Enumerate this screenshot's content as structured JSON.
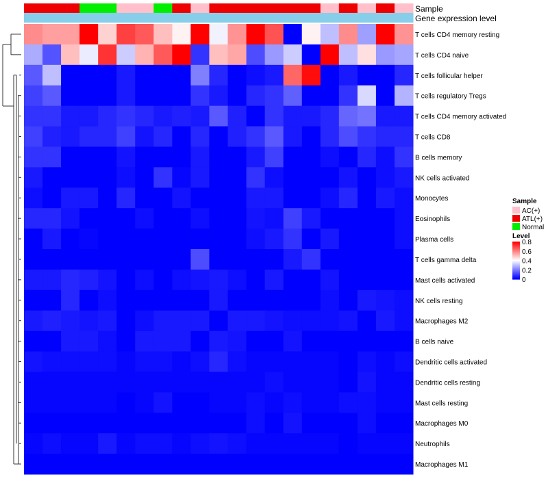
{
  "chart_data": {
    "type": "heatmap",
    "title": "",
    "annotation_labels": {
      "sample": "Sample",
      "gene_expression": "Gene expression level"
    },
    "legend": {
      "sample_title": "Sample",
      "sample_entries": [
        {
          "label": "AC(+)",
          "color": "#FFC0CB"
        },
        {
          "label": "ATL(+)",
          "color": "#EE0000"
        },
        {
          "label": "Normal",
          "color": "#00EE00"
        }
      ],
      "level_title": "Level",
      "level_ticks": [
        "0.8",
        "0.6",
        "0.4",
        "0.2",
        "0"
      ],
      "level_tick_values": [
        0.8,
        0.6,
        0.4,
        0.2,
        0
      ],
      "color_scale": {
        "min": 0,
        "mid": 0.4,
        "max": 0.8,
        "low": "#0000FF",
        "mid_color": "#FFFFFF",
        "high": "#FF0000"
      }
    },
    "sample_groups": [
      "ATL(+)",
      "ATL(+)",
      "ATL(+)",
      "Normal",
      "Normal",
      "AC(+)",
      "AC(+)",
      "Normal",
      "ATL(+)",
      "AC(+)",
      "ATL(+)",
      "ATL(+)",
      "ATL(+)",
      "ATL(+)",
      "ATL(+)",
      "ATL(+)",
      "AC(+)",
      "ATL(+)",
      "AC(+)",
      "ATL(+)",
      "AC(+)"
    ],
    "rows": [
      "T cells CD4 memory resting",
      "T cells CD4 naive",
      "T cells follicular helper",
      "T cells regulatory  Tregs",
      "T cells CD4 memory activated",
      "T cells CD8",
      "B cells memory",
      "NK cells activated",
      "Monocytes",
      "Eosinophils",
      "Plasma cells",
      "T cells gamma delta",
      "Mast cells activated",
      "NK cells resting",
      "Macrophages M2",
      "B cells naive",
      "Dendritic cells activated",
      "Dendritic cells resting",
      "Mast cells resting",
      "Macrophages M0",
      "Neutrophils",
      "Macrophages M1"
    ],
    "values": [
      [
        0.58,
        0.55,
        0.55,
        0.8,
        0.47,
        0.7,
        0.66,
        0.5,
        0.42,
        0.8,
        0.38,
        0.57,
        0.8,
        0.67,
        0.0,
        0.42,
        0.3,
        0.58,
        0.25,
        0.8,
        0.57
      ],
      [
        0.27,
        0.13,
        0.5,
        0.37,
        0.72,
        0.32,
        0.52,
        0.66,
        0.8,
        0.08,
        0.5,
        0.54,
        0.12,
        0.24,
        0.32,
        0.0,
        0.8,
        0.3,
        0.45,
        0.24,
        0.26
      ],
      [
        0.14,
        0.3,
        0.0,
        0.0,
        0.0,
        0.04,
        0.0,
        0.0,
        0.0,
        0.2,
        0.06,
        0.0,
        0.02,
        0.04,
        0.64,
        0.78,
        0.0,
        0.04,
        0.0,
        0.0,
        0.06
      ],
      [
        0.1,
        0.14,
        0.0,
        0.0,
        0.0,
        0.04,
        0.0,
        0.0,
        0.0,
        0.08,
        0.04,
        0.0,
        0.06,
        0.08,
        0.15,
        0.0,
        0.0,
        0.08,
        0.34,
        0.0,
        0.28
      ],
      [
        0.08,
        0.08,
        0.04,
        0.04,
        0.06,
        0.08,
        0.06,
        0.04,
        0.05,
        0.04,
        0.14,
        0.05,
        0.0,
        0.08,
        0.04,
        0.04,
        0.06,
        0.16,
        0.18,
        0.04,
        0.04
      ],
      [
        0.1,
        0.05,
        0.04,
        0.06,
        0.06,
        0.1,
        0.03,
        0.06,
        0.0,
        0.06,
        0.0,
        0.05,
        0.08,
        0.14,
        0.04,
        0.0,
        0.06,
        0.12,
        0.08,
        0.06,
        0.06
      ],
      [
        0.08,
        0.08,
        0.0,
        0.0,
        0.0,
        0.03,
        0.0,
        0.0,
        0.0,
        0.04,
        0.0,
        0.0,
        0.04,
        0.1,
        0.0,
        0.0,
        0.02,
        0.0,
        0.06,
        0.02,
        0.08
      ],
      [
        0.04,
        0.0,
        0.0,
        0.0,
        0.0,
        0.02,
        0.0,
        0.08,
        0.01,
        0.04,
        0.0,
        0.0,
        0.08,
        0.02,
        0.0,
        0.0,
        0.0,
        0.03,
        0.0,
        0.02,
        0.04
      ],
      [
        0.02,
        0.0,
        0.04,
        0.04,
        0.0,
        0.06,
        0.0,
        0.0,
        0.03,
        0.0,
        0.0,
        0.0,
        0.04,
        0.04,
        0.0,
        0.0,
        0.02,
        0.06,
        0.0,
        0.04,
        0.02
      ],
      [
        0.06,
        0.06,
        0.03,
        0.0,
        0.0,
        0.0,
        0.02,
        0.0,
        0.0,
        0.02,
        0.0,
        0.0,
        0.03,
        0.02,
        0.1,
        0.04,
        0.0,
        0.0,
        0.0,
        0.0,
        0.02
      ],
      [
        0.0,
        0.04,
        0.0,
        0.01,
        0.0,
        0.0,
        0.0,
        0.0,
        0.0,
        0.0,
        0.0,
        0.0,
        0.02,
        0.04,
        0.08,
        0.0,
        0.04,
        0.0,
        0.0,
        0.0,
        0.02
      ],
      [
        0.0,
        0.0,
        0.0,
        0.0,
        0.0,
        0.0,
        0.0,
        0.0,
        0.0,
        0.12,
        0.0,
        0.0,
        0.0,
        0.0,
        0.04,
        0.08,
        0.0,
        0.0,
        0.0,
        0.0,
        0.0
      ],
      [
        0.04,
        0.04,
        0.06,
        0.05,
        0.03,
        0.0,
        0.02,
        0.0,
        0.02,
        0.03,
        0.04,
        0.02,
        0.0,
        0.04,
        0.0,
        0.0,
        0.03,
        0.0,
        0.0,
        0.0,
        0.0
      ],
      [
        0.0,
        0.0,
        0.06,
        0.0,
        0.02,
        0.0,
        0.0,
        0.0,
        0.0,
        0.0,
        0.04,
        0.0,
        0.0,
        0.0,
        0.0,
        0.0,
        0.02,
        0.0,
        0.04,
        0.03,
        0.02
      ],
      [
        0.04,
        0.05,
        0.04,
        0.03,
        0.04,
        0.0,
        0.02,
        0.04,
        0.04,
        0.04,
        0.0,
        0.04,
        0.04,
        0.03,
        0.02,
        0.02,
        0.02,
        0.03,
        0.0,
        0.04,
        0.02
      ],
      [
        0.0,
        0.0,
        0.04,
        0.04,
        0.02,
        0.0,
        0.04,
        0.04,
        0.04,
        0.0,
        0.04,
        0.03,
        0.0,
        0.0,
        0.03,
        0.0,
        0.0,
        0.0,
        0.0,
        0.0,
        0.0
      ],
      [
        0.03,
        0.02,
        0.02,
        0.02,
        0.02,
        0.01,
        0.02,
        0.02,
        0.01,
        0.02,
        0.06,
        0.02,
        0.01,
        0.01,
        0.01,
        0.01,
        0.01,
        0.0,
        0.02,
        0.01,
        0.02
      ],
      [
        0.01,
        0.01,
        0.01,
        0.01,
        0.01,
        0.01,
        0.01,
        0.01,
        0.01,
        0.01,
        0.01,
        0.01,
        0.01,
        0.02,
        0.01,
        0.01,
        0.01,
        0.0,
        0.03,
        0.01,
        0.01
      ],
      [
        0.01,
        0.01,
        0.01,
        0.01,
        0.01,
        0.0,
        0.01,
        0.03,
        0.0,
        0.0,
        0.01,
        0.01,
        0.02,
        0.01,
        0.02,
        0.01,
        0.01,
        0.02,
        0.02,
        0.01,
        0.01
      ],
      [
        0.0,
        0.0,
        0.0,
        0.0,
        0.0,
        0.0,
        0.0,
        0.0,
        0.0,
        0.0,
        0.0,
        0.0,
        0.02,
        0.0,
        0.03,
        0.0,
        0.0,
        0.0,
        0.02,
        0.0,
        0.0
      ],
      [
        0.01,
        0.02,
        0.01,
        0.01,
        0.04,
        0.01,
        0.02,
        0.02,
        0.01,
        0.02,
        0.03,
        0.02,
        0.01,
        0.01,
        0.01,
        0.01,
        0.01,
        0.0,
        0.01,
        0.01,
        0.01
      ],
      [
        0.0,
        0.0,
        0.0,
        0.0,
        0.0,
        0.0,
        0.0,
        0.0,
        0.0,
        0.0,
        0.0,
        0.0,
        0.0,
        0.0,
        0.0,
        0.0,
        0.0,
        0.0,
        0.0,
        0.0,
        0.0
      ]
    ],
    "gene_expression_level": [
      0.27,
      0.27,
      0.27,
      0.27,
      0.27,
      0.27,
      0.27,
      0.27,
      0.27,
      0.27,
      0.27,
      0.27,
      0.27,
      0.27,
      0.27,
      0.27,
      0.27,
      0.27,
      0.27,
      0.27,
      0.27
    ],
    "dendrogram": "rows"
  }
}
